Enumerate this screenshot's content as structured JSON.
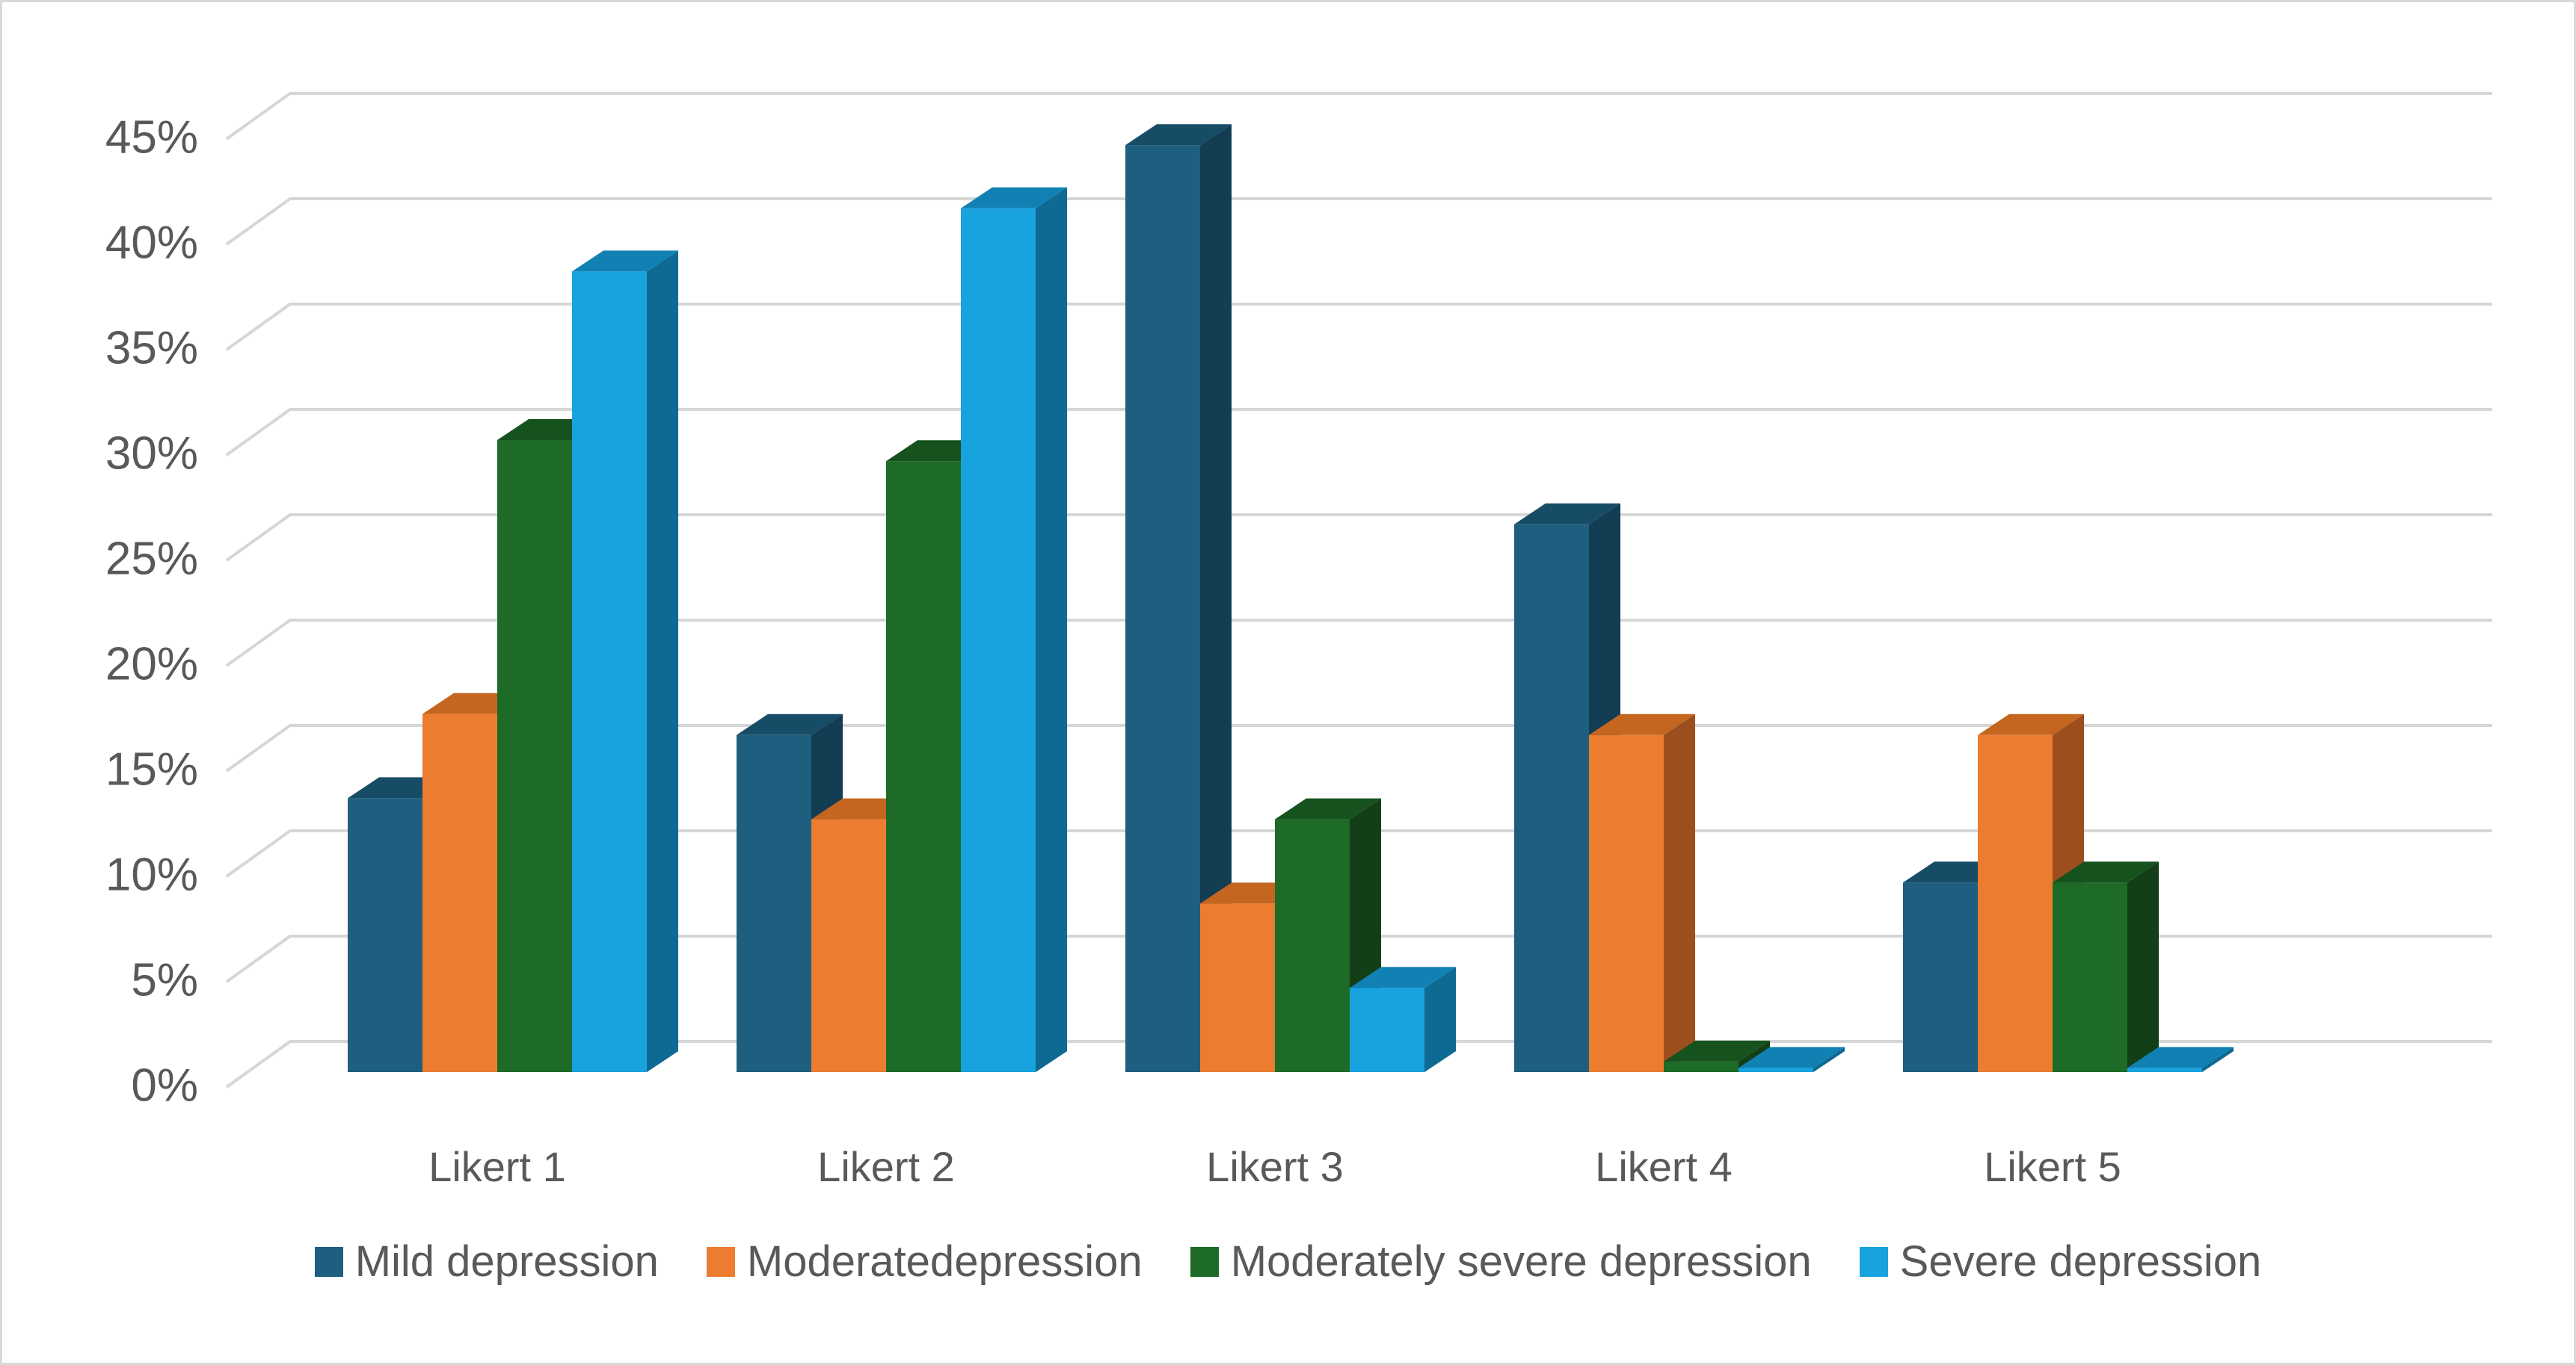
{
  "chart_data": {
    "type": "bar",
    "projection": "3d",
    "title": "",
    "xlabel": "",
    "ylabel": "",
    "categories": [
      "Likert 1",
      "Likert 2",
      "Likert 3",
      "Likert 4",
      "Likert 5"
    ],
    "series": [
      {
        "name": "Mild depression",
        "color": "#1E5F80",
        "side_color": "#123D52",
        "top_color": "#174C66",
        "values": [
          13,
          16,
          44,
          26,
          9
        ]
      },
      {
        "name": "Moderatedepression",
        "color": "#EC7C30",
        "side_color": "#9C4F1D",
        "top_color": "#C4661F",
        "values": [
          17,
          12,
          8,
          16,
          16
        ]
      },
      {
        "name": "Moderately severe depression",
        "color": "#1E6B28",
        "side_color": "#123F18",
        "top_color": "#15521E",
        "values": [
          30,
          29,
          12,
          0.5,
          9
        ]
      },
      {
        "name": "Severe depression",
        "color": "#18A3DE",
        "side_color": "#0E6A92",
        "top_color": "#1181B4",
        "values": [
          38,
          41,
          4,
          0.2,
          0.2
        ]
      }
    ],
    "ylim": [
      0,
      45
    ],
    "ytick_step": 5,
    "ytick_labels": [
      "0%",
      "5%",
      "10%",
      "15%",
      "20%",
      "25%",
      "30%",
      "35%",
      "40%",
      "45%"
    ],
    "grid": true,
    "grid_color": "#D6D6D6",
    "text_color": "#595959",
    "background": "#FFFFFF",
    "border_color": "#D9D9D9",
    "legend_position": "bottom"
  }
}
